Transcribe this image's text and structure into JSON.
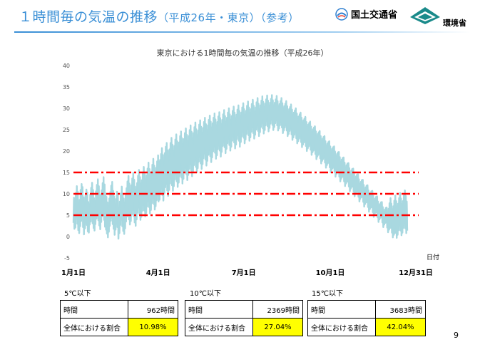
{
  "slide": {
    "title_main": "１時間毎の気温の推移",
    "title_sub": "（平成26年・東京）（参考）",
    "logo_mlit": "国土交通省",
    "logo_moe": "環境省",
    "page_number": "9"
  },
  "chart_data": {
    "type": "line",
    "title": "東京における1時間毎の気温の推移（平成26年）",
    "x_unit_label": "日付",
    "x_ticks": [
      "1月1日",
      "4月1日",
      "7月1日",
      "10月1日",
      "12月31日"
    ],
    "x_tick_days": [
      0,
      90,
      181,
      273,
      364
    ],
    "xlim": [
      0,
      364
    ],
    "ylim": [
      -5,
      40
    ],
    "y_ticks": [
      -5,
      0,
      5,
      10,
      15,
      20,
      25,
      30,
      35,
      40
    ],
    "grid": false,
    "series": [
      {
        "color": "#a8d8e0",
        "daily_min": [
          3.2,
          1.8,
          2.1,
          4.5,
          3.0,
          1.5,
          0.8,
          2.4,
          3.6,
          4.1,
          2.2,
          0.5,
          1.9,
          3.3,
          2.7,
          1.2,
          0.9,
          2.8,
          3.5,
          4.6,
          3.1,
          2.0,
          1.4,
          2.9,
          4.2,
          5.3,
          3.8,
          2.6,
          1.7,
          3.4,
          4.8,
          5.5,
          3.9,
          2.3,
          1.6,
          0.7,
          -0.2,
          1.1,
          2.5,
          3.7,
          4.4,
          2.9,
          1.8,
          0.4,
          1.6,
          3.0,
          2.2,
          -0.5,
          0.8,
          2.7,
          3.9,
          2.4,
          1.3,
          0.6,
          1.9,
          3.5,
          4.7,
          5.9,
          4.0,
          2.8,
          3.6,
          5.1,
          6.2,
          4.8,
          3.3,
          2.5,
          4.0,
          5.6,
          6.8,
          5.2,
          3.9,
          4.6,
          6.0,
          7.4,
          6.1,
          4.7,
          5.5,
          7.0,
          8.3,
          6.9,
          5.4,
          6.2,
          7.8,
          9.1,
          7.6,
          6.3,
          7.1,
          8.5,
          9.8,
          8.2,
          8.6,
          9.9,
          11.2,
          9.7,
          8.4,
          10.1,
          11.5,
          12.3,
          10.8,
          9.5,
          10.9,
          12.4,
          13.6,
          12.0,
          10.7,
          11.8,
          13.3,
          14.5,
          12.9,
          11.6,
          12.6,
          14.1,
          15.3,
          13.8,
          12.4,
          13.5,
          15.0,
          16.1,
          14.6,
          13.2,
          14.4,
          15.8,
          17.0,
          15.5,
          14.1,
          15.2,
          16.7,
          17.8,
          16.3,
          15.0,
          16.0,
          17.5,
          18.6,
          17.1,
          15.8,
          16.9,
          18.3,
          19.4,
          18.0,
          16.6,
          17.7,
          19.1,
          20.2,
          18.8,
          17.4,
          18.5,
          19.9,
          21.0,
          19.6,
          18.2,
          19.0,
          20.4,
          21.5,
          20.1,
          18.7,
          19.8,
          21.2,
          22.3,
          20.9,
          19.5,
          20.5,
          21.8,
          22.9,
          21.4,
          20.1,
          21.0,
          22.4,
          23.5,
          22.0,
          20.6,
          21.5,
          22.8,
          23.8,
          22.4,
          21.0,
          22.1,
          23.4,
          24.5,
          23.1,
          21.8,
          22.7,
          24.0,
          25.1,
          23.7,
          22.4,
          23.2,
          24.5,
          25.6,
          24.2,
          22.9,
          23.8,
          25.0,
          26.1,
          24.7,
          23.5,
          24.4,
          25.6,
          26.6,
          25.3,
          24.1,
          24.9,
          26.0,
          27.1,
          25.8,
          24.6,
          25.4,
          26.4,
          27.3,
          26.1,
          24.9,
          25.6,
          26.5,
          27.2,
          26.0,
          24.8,
          25.3,
          26.0,
          26.7,
          25.5,
          24.2,
          24.8,
          25.5,
          26.0,
          24.8,
          23.5,
          24.0,
          24.7,
          25.2,
          23.9,
          22.6,
          23.2,
          23.8,
          24.3,
          23.0,
          21.8,
          22.3,
          22.9,
          23.4,
          22.1,
          20.9,
          21.5,
          22.0,
          22.5,
          21.2,
          20.0,
          20.6,
          21.1,
          21.5,
          20.3,
          19.1,
          19.7,
          20.1,
          20.5,
          19.3,
          18.1,
          18.7,
          19.1,
          19.5,
          18.3,
          17.1,
          17.7,
          18.1,
          18.5,
          17.3,
          16.1,
          16.7,
          17.1,
          17.4,
          16.2,
          15.0,
          15.6,
          16.0,
          16.3,
          15.1,
          14.0,
          14.6,
          15.0,
          15.2,
          14.0,
          12.9,
          13.5,
          13.9,
          14.1,
          12.9,
          11.8,
          12.4,
          12.8,
          12.9,
          11.7,
          10.6,
          11.2,
          11.6,
          11.7,
          10.5,
          9.4,
          10.0,
          10.4,
          10.5,
          9.3,
          8.2,
          8.8,
          9.2,
          9.3,
          8.1,
          7.0,
          7.6,
          8.0,
          8.1,
          6.9,
          5.8,
          6.4,
          6.8,
          6.9,
          5.7,
          4.6,
          5.2,
          5.6,
          5.7,
          4.5,
          3.4,
          4.0,
          4.4,
          4.5,
          3.3,
          2.2,
          2.8,
          3.2,
          3.3,
          2.1,
          1.0,
          1.6,
          2.0,
          2.1,
          0.9,
          -0.2,
          0.4,
          0.8,
          0.9,
          -0.3,
          0.4,
          1.5,
          2.6,
          1.4,
          0.3,
          0.9,
          2.0,
          3.1,
          1.9,
          0.8,
          1.4,
          2.5,
          3.6,
          2.4,
          1.3,
          1.9,
          3.0,
          4.1,
          2.9,
          1.8
        ],
        "daily_max": [
          9.1,
          8.4,
          10.2,
          11.8,
          10.5,
          7.9,
          8.6,
          10.9,
          12.3,
          11.6,
          9.2,
          7.8,
          9.5,
          11.0,
          10.3,
          8.1,
          7.5,
          9.8,
          11.4,
          12.6,
          10.9,
          9.0,
          8.3,
          10.6,
          12.1,
          13.4,
          11.8,
          9.9,
          8.7,
          10.8,
          12.5,
          13.9,
          12.2,
          10.1,
          9.3,
          8.0,
          7.1,
          8.9,
          10.4,
          11.9,
          12.8,
          10.7,
          9.4,
          7.6,
          8.8,
          10.5,
          9.6,
          6.8,
          8.2,
          10.1,
          11.7,
          10.0,
          8.9,
          7.9,
          9.6,
          11.3,
          12.9,
          14.2,
          12.4,
          10.8,
          12.0,
          13.6,
          14.9,
          13.3,
          11.7,
          10.9,
          12.5,
          14.2,
          15.6,
          13.9,
          12.4,
          13.2,
          14.8,
          16.3,
          14.9,
          13.4,
          14.3,
          15.9,
          17.3,
          15.8,
          14.2,
          15.1,
          16.8,
          18.2,
          16.6,
          15.2,
          16.1,
          17.6,
          19.0,
          17.4,
          17.9,
          19.3,
          20.7,
          19.1,
          17.6,
          19.5,
          21.0,
          21.9,
          20.2,
          18.8,
          20.4,
          21.9,
          23.1,
          21.5,
          20.0,
          21.2,
          22.7,
          23.9,
          22.3,
          20.9,
          22.0,
          23.5,
          24.6,
          23.0,
          21.6,
          22.8,
          24.2,
          25.3,
          23.8,
          22.3,
          23.5,
          24.9,
          26.0,
          24.5,
          23.0,
          24.2,
          25.6,
          26.7,
          25.1,
          23.7,
          24.8,
          26.2,
          27.2,
          25.7,
          24.3,
          25.4,
          26.8,
          27.8,
          26.3,
          24.9,
          26.0,
          27.3,
          28.3,
          26.9,
          25.5,
          26.5,
          27.8,
          28.8,
          27.4,
          26.0,
          26.8,
          28.1,
          29.1,
          27.7,
          26.3,
          27.3,
          28.6,
          29.6,
          28.2,
          26.8,
          27.8,
          29.0,
          30.0,
          28.6,
          27.3,
          28.2,
          29.4,
          30.4,
          29.0,
          27.7,
          28.5,
          29.7,
          30.7,
          29.4,
          28.1,
          29.0,
          30.2,
          31.2,
          29.8,
          28.5,
          29.4,
          30.6,
          31.6,
          30.2,
          28.9,
          29.8,
          31.0,
          32.0,
          30.6,
          29.3,
          30.2,
          31.4,
          32.4,
          31.1,
          29.8,
          30.7,
          31.8,
          32.8,
          31.5,
          30.3,
          31.1,
          32.1,
          33.0,
          31.8,
          30.6,
          31.3,
          32.2,
          33.1,
          31.9,
          30.7,
          31.3,
          32.1,
          32.9,
          31.7,
          30.5,
          31.0,
          31.7,
          32.4,
          31.2,
          30.0,
          30.5,
          31.1,
          31.7,
          30.5,
          29.3,
          29.8,
          30.3,
          30.9,
          29.7,
          28.5,
          29.0,
          29.5,
          30.0,
          28.8,
          27.6,
          28.1,
          28.6,
          29.0,
          27.8,
          26.7,
          27.2,
          27.6,
          28.0,
          26.8,
          25.7,
          26.2,
          26.6,
          26.9,
          25.7,
          24.6,
          25.1,
          25.5,
          25.8,
          24.6,
          23.5,
          24.0,
          24.4,
          24.7,
          23.5,
          22.4,
          22.9,
          23.3,
          23.5,
          22.3,
          21.2,
          21.7,
          22.1,
          22.3,
          21.1,
          20.0,
          20.5,
          20.9,
          21.1,
          19.9,
          18.8,
          19.3,
          19.7,
          19.8,
          18.6,
          17.5,
          18.0,
          18.4,
          18.5,
          17.3,
          16.2,
          16.7,
          17.1,
          17.2,
          16.0,
          14.9,
          15.4,
          15.8,
          15.9,
          14.7,
          13.6,
          14.1,
          14.5,
          14.6,
          13.4,
          12.3,
          12.8,
          13.2,
          13.3,
          12.1,
          11.0,
          11.5,
          11.9,
          12.0,
          10.8,
          9.7,
          10.2,
          10.6,
          10.7,
          9.5,
          8.4,
          8.9,
          9.3,
          9.4,
          8.2,
          7.1,
          7.6,
          8.0,
          8.1,
          6.9,
          5.8,
          6.3,
          6.7,
          6.8,
          5.6,
          6.5,
          7.8,
          9.0,
          7.7,
          6.4,
          7.1,
          8.4,
          9.6,
          8.3,
          7.0,
          7.7,
          9.0,
          10.2,
          8.9,
          7.6,
          8.3,
          9.6,
          10.8,
          9.5,
          8.2
        ]
      }
    ],
    "reference_lines": [
      {
        "value": 15,
        "color": "#ff0000",
        "style": "dash-dot"
      },
      {
        "value": 10,
        "color": "#ff0000",
        "style": "dash-dot"
      },
      {
        "value": 5,
        "color": "#ff0000",
        "style": "dash-dot"
      }
    ]
  },
  "stats": [
    {
      "heading": "5℃以下",
      "rows": [
        {
          "label": "時間",
          "value": "962時間"
        },
        {
          "label": "全体における割合",
          "value": "10.98%"
        }
      ]
    },
    {
      "heading": "10℃以下",
      "rows": [
        {
          "label": "時間",
          "value": "2369時間"
        },
        {
          "label": "全体における割合",
          "value": "27.04%"
        }
      ]
    },
    {
      "heading": "15℃以下",
      "rows": [
        {
          "label": "時間",
          "value": "3683時間"
        },
        {
          "label": "全体における割合",
          "value": "42.04%"
        }
      ]
    }
  ]
}
